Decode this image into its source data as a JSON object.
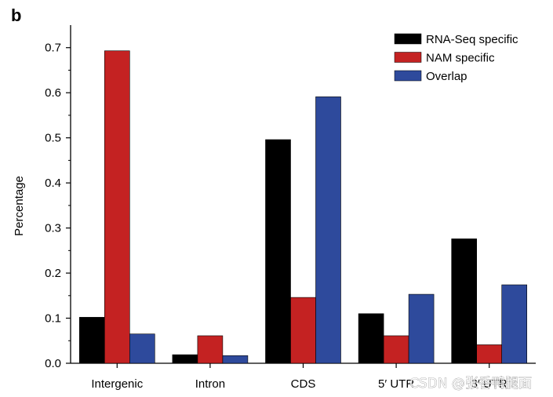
{
  "panel_label": "b",
  "watermark": "CSDN @张香鸭腿面",
  "chart_data": {
    "type": "bar",
    "title": "",
    "xlabel": "",
    "ylabel": "Percentage",
    "ylim": [
      0,
      0.75
    ],
    "yticks": [
      "0.0",
      "0.1",
      "0.2",
      "0.3",
      "0.4",
      "0.5",
      "0.6",
      "0.7"
    ],
    "categories": [
      "Intergenic",
      "Intron",
      "CDS",
      "5′ UTR",
      "3′ UTR"
    ],
    "series": [
      {
        "name": "RNA-Seq specific",
        "color": "#000000",
        "values": [
          0.102,
          0.019,
          0.496,
          0.11,
          0.276
        ]
      },
      {
        "name": "NAM specific",
        "color": "#c42222",
        "values": [
          0.693,
          0.061,
          0.146,
          0.061,
          0.041
        ]
      },
      {
        "name": "Overlap",
        "color": "#2e4a9c",
        "values": [
          0.065,
          0.017,
          0.591,
          0.153,
          0.174
        ]
      }
    ],
    "legend_position": "top-right",
    "grid": false
  }
}
